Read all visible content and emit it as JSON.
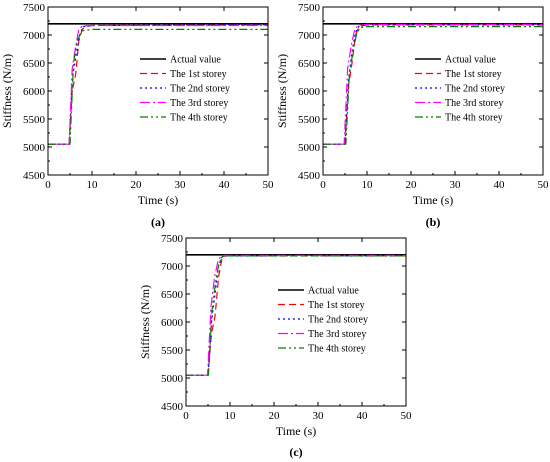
{
  "figure": {
    "panels": [
      "(a)",
      "(b)",
      "(c)"
    ]
  },
  "series_styles": [
    {
      "color": "#000000",
      "dash": "none"
    },
    {
      "color": "#ff0000",
      "dash": "7,4"
    },
    {
      "color": "#0000ff",
      "dash": "2,3"
    },
    {
      "color": "#ff00ff",
      "dash": "10,3,2,3"
    },
    {
      "color": "#008000",
      "dash": "8,3,2,3,2,3"
    }
  ],
  "chart_data": [
    {
      "type": "line",
      "panel_label": "(a)",
      "xlabel": "Time (s)",
      "ylabel": "Stiffness (N/m)",
      "xlim": [
        0,
        50
      ],
      "ylim": [
        4500,
        7500
      ],
      "xticks": [
        0,
        10,
        20,
        30,
        40,
        50
      ],
      "yticks": [
        4500,
        5000,
        5500,
        6000,
        6500,
        7000,
        7500
      ],
      "legend_position": "center-right",
      "series": [
        {
          "name": "Actual value",
          "x": [
            0,
            50
          ],
          "y": [
            7200,
            7200
          ]
        },
        {
          "name": "The 1st storey",
          "x": [
            0,
            4.8,
            5.5,
            6.3,
            7.0,
            7.8,
            8.5,
            10,
            50
          ],
          "y": [
            5050,
            5050,
            6000,
            6300,
            6900,
            7100,
            7150,
            7170,
            7180
          ]
        },
        {
          "name": "The 2nd storey",
          "x": [
            0,
            4.8,
            5.5,
            6.3,
            7.2,
            8.0,
            10,
            50
          ],
          "y": [
            5050,
            5050,
            6200,
            6600,
            7000,
            7150,
            7170,
            7190
          ]
        },
        {
          "name": "The 3rd storey",
          "x": [
            0,
            4.8,
            5.5,
            6.3,
            7.0,
            7.8,
            10,
            50
          ],
          "y": [
            5050,
            5050,
            6400,
            6800,
            7100,
            7160,
            7170,
            7170
          ]
        },
        {
          "name": "The 4th storey",
          "x": [
            0,
            5.0,
            5.8,
            6.6,
            7.3,
            8.0,
            10,
            50
          ],
          "y": [
            5050,
            5050,
            6500,
            6900,
            7000,
            7080,
            7100,
            7100
          ]
        }
      ]
    },
    {
      "type": "line",
      "panel_label": "(b)",
      "xlabel": "Time (s)",
      "ylabel": "Stiffness (N/m)",
      "xlim": [
        0,
        50
      ],
      "ylim": [
        4500,
        7500
      ],
      "xticks": [
        0,
        10,
        20,
        30,
        40,
        50
      ],
      "yticks": [
        4500,
        5000,
        5500,
        6000,
        6500,
        7000,
        7500
      ],
      "legend_position": "center-right",
      "series": [
        {
          "name": "Actual value",
          "x": [
            0,
            50
          ],
          "y": [
            7200,
            7200
          ]
        },
        {
          "name": "The 1st storey",
          "x": [
            0,
            5.0,
            5.8,
            6.6,
            7.4,
            8.2,
            10,
            50
          ],
          "y": [
            5050,
            5050,
            6100,
            6500,
            7000,
            7150,
            7180,
            7180
          ]
        },
        {
          "name": "The 2nd storey",
          "x": [
            0,
            5.0,
            5.8,
            6.6,
            7.4,
            8.2,
            10,
            50
          ],
          "y": [
            5050,
            5050,
            6200,
            6700,
            7050,
            7160,
            7180,
            7180
          ]
        },
        {
          "name": "The 3rd storey",
          "x": [
            0,
            4.8,
            5.6,
            6.4,
            7.2,
            8.0,
            10,
            50
          ],
          "y": [
            5050,
            5050,
            6400,
            6800,
            7100,
            7170,
            7190,
            7190
          ]
        },
        {
          "name": "The 4th storey",
          "x": [
            0,
            5.2,
            6.0,
            6.8,
            7.6,
            8.4,
            10,
            50
          ],
          "y": [
            5050,
            5050,
            6300,
            6700,
            7000,
            7130,
            7150,
            7150
          ]
        }
      ]
    },
    {
      "type": "line",
      "panel_label": "(c)",
      "xlabel": "Time (s)",
      "ylabel": "Stiffness (N/m)",
      "xlim": [
        0,
        50
      ],
      "ylim": [
        4500,
        7500
      ],
      "xticks": [
        0,
        10,
        20,
        30,
        40,
        50
      ],
      "yticks": [
        4500,
        5000,
        5500,
        6000,
        6500,
        7000,
        7500
      ],
      "legend_position": "center-right",
      "series": [
        {
          "name": "Actual value",
          "x": [
            0,
            50
          ],
          "y": [
            7200,
            7200
          ]
        },
        {
          "name": "The 1st storey",
          "x": [
            0,
            5.0,
            5.8,
            6.6,
            7.4,
            8.2,
            9.0,
            50
          ],
          "y": [
            5050,
            5050,
            5800,
            6100,
            6800,
            7150,
            7180,
            7180
          ]
        },
        {
          "name": "The 2nd storey",
          "x": [
            0,
            5.0,
            5.8,
            6.6,
            7.4,
            8.2,
            9.0,
            50
          ],
          "y": [
            5050,
            5050,
            6000,
            6500,
            7000,
            7160,
            7180,
            7180
          ]
        },
        {
          "name": "The 3rd storey",
          "x": [
            0,
            4.9,
            5.7,
            6.5,
            7.3,
            8.0,
            9.0,
            50
          ],
          "y": [
            5050,
            5050,
            6300,
            6800,
            7100,
            7180,
            7190,
            7190
          ]
        },
        {
          "name": "The 4th storey",
          "x": [
            0,
            5.1,
            5.9,
            6.7,
            7.5,
            8.3,
            9.0,
            50
          ],
          "y": [
            5050,
            5050,
            6200,
            6700,
            7050,
            7170,
            7180,
            7180
          ]
        }
      ]
    }
  ]
}
